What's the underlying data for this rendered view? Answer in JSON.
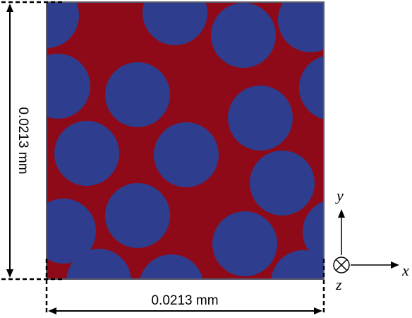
{
  "dimensions": {
    "width_label": "0.0213 mm",
    "height_label": "0.0213 mm"
  },
  "axes": {
    "x_label": "x",
    "y_label": "y",
    "z_label": "z"
  },
  "colors": {
    "matrix": "#8f0a18",
    "fiber": "#2e3d8e",
    "border": "#5a5a6a",
    "line": "#000000"
  }
}
